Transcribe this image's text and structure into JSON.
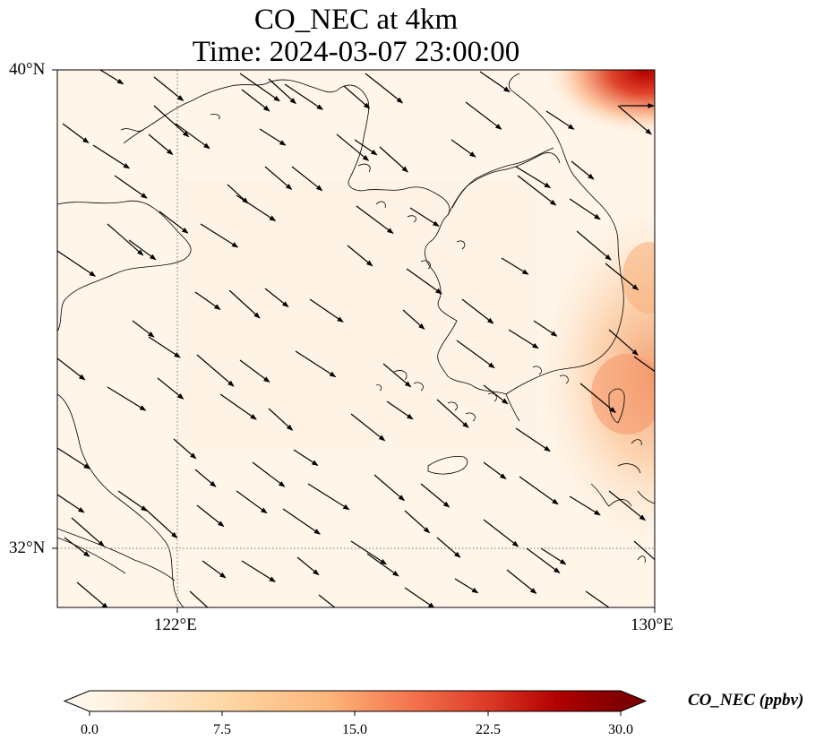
{
  "title": {
    "line1": "CO_NEC at 4km",
    "line2": "Time: 2024-03-07 23:00:00"
  },
  "axes": {
    "lat_ticks": [
      "40°N",
      "32°N"
    ],
    "lon_ticks": [
      "122°E",
      "130°E"
    ],
    "lat_range": [
      31,
      40
    ],
    "lon_range": [
      120,
      130
    ],
    "gridlines": "dotted"
  },
  "colorbar": {
    "label": "CO_NEC (ppbv)",
    "ticks": [
      "0.0",
      "7.5",
      "15.0",
      "22.5",
      "30.0"
    ],
    "range": [
      0,
      30
    ],
    "colormap": "OrRd",
    "extend": "both"
  },
  "map": {
    "field_color_low": "#fff5e8",
    "field_color_high": "#7f0000",
    "coastline_color": "#000000",
    "vector_color": "#000000",
    "vector_direction": "northwesterly flow toward southeast"
  }
}
